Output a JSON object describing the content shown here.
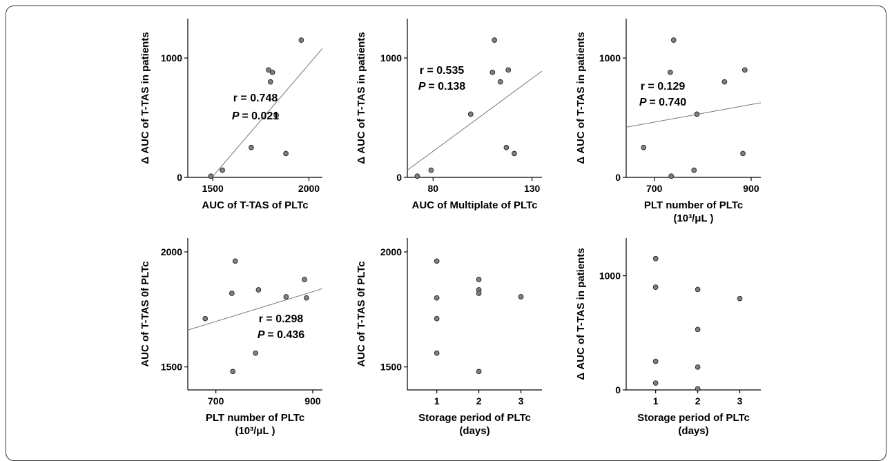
{
  "chart_data": [
    {
      "type": "scatter",
      "xlabel": [
        "AUC of T-TAS of PLTc"
      ],
      "ylabel": "Δ AUC of T-TAS in patients",
      "xlim": [
        1370,
        2070
      ],
      "ylim": [
        0,
        1330
      ],
      "xticks": [
        1500,
        2000
      ],
      "yticks": [
        0,
        1000
      ],
      "points": [
        [
          1490,
          10
        ],
        [
          1550,
          60
        ],
        [
          1700,
          250
        ],
        [
          1790,
          900
        ],
        [
          1800,
          800
        ],
        [
          1810,
          880
        ],
        [
          1830,
          520
        ],
        [
          1880,
          200
        ],
        [
          1960,
          1150
        ]
      ],
      "trendline": [
        [
          1480,
          -30
        ],
        [
          2070,
          1080
        ]
      ],
      "stats": {
        "r": "r = 0.748",
        "p": "= 0.021"
      }
    },
    {
      "type": "scatter",
      "xlabel": [
        "AUC of Multiplate of PLTc"
      ],
      "ylabel": "Δ AUC of T-TAS in patients",
      "xlim": [
        67,
        135
      ],
      "ylim": [
        0,
        1330
      ],
      "xticks": [
        80,
        130
      ],
      "yticks": [
        0,
        1000
      ],
      "points": [
        [
          72,
          10
        ],
        [
          79,
          60
        ],
        [
          99,
          530
        ],
        [
          110,
          880
        ],
        [
          111,
          1150
        ],
        [
          114,
          800
        ],
        [
          117,
          250
        ],
        [
          118,
          900
        ],
        [
          121,
          200
        ]
      ],
      "trendline": [
        [
          67,
          60
        ],
        [
          135,
          890
        ]
      ],
      "stats": {
        "r": "r = 0.535",
        "p": "= 0.138"
      }
    },
    {
      "type": "scatter",
      "xlabel": [
        "PLT number of PLTc",
        "(10³/μL )"
      ],
      "ylabel": "Δ AUC of T-TAS in patients",
      "xlim": [
        642,
        920
      ],
      "ylim": [
        0,
        1330
      ],
      "xticks": [
        700,
        900
      ],
      "yticks": [
        0,
        1000
      ],
      "points": [
        [
          678,
          250
        ],
        [
          733,
          880
        ],
        [
          735,
          10
        ],
        [
          740,
          1150
        ],
        [
          782,
          60
        ],
        [
          788,
          530
        ],
        [
          845,
          800
        ],
        [
          883,
          200
        ],
        [
          887,
          900
        ]
      ],
      "trendline": [
        [
          642,
          420
        ],
        [
          920,
          625
        ]
      ],
      "stats": {
        "r": "r = 0.129",
        "p": "= 0.740"
      }
    },
    {
      "type": "scatter",
      "xlabel": [
        "PLT number of PLTc",
        "(10³/μL )"
      ],
      "ylabel": "AUC of T-TAS 0f PLTc",
      "xlim": [
        642,
        920
      ],
      "ylim": [
        1400,
        2060
      ],
      "xticks": [
        700,
        900
      ],
      "yticks": [
        1500,
        2000
      ],
      "points": [
        [
          678,
          1710
        ],
        [
          733,
          1820
        ],
        [
          735,
          1480
        ],
        [
          740,
          1960
        ],
        [
          782,
          1560
        ],
        [
          788,
          1835
        ],
        [
          845,
          1805
        ],
        [
          883,
          1880
        ],
        [
          887,
          1800
        ]
      ],
      "trendline": [
        [
          642,
          1660
        ],
        [
          920,
          1840
        ]
      ],
      "stats": {
        "r": "r = 0.298",
        "p": "= 0.436"
      }
    },
    {
      "type": "scatter",
      "xlabel": [
        "Storage period of PLTc",
        "(days)"
      ],
      "ylabel": "AUC of T-TAS 0f PLTc",
      "xlim": [
        0.3,
        3.5
      ],
      "ylim": [
        1400,
        2060
      ],
      "xticks": [
        1,
        2,
        3
      ],
      "yticks": [
        1500,
        2000
      ],
      "points": [
        [
          1,
          1960
        ],
        [
          1,
          1800
        ],
        [
          1,
          1710
        ],
        [
          1,
          1560
        ],
        [
          2,
          1880
        ],
        [
          2,
          1835
        ],
        [
          2,
          1820
        ],
        [
          2,
          1480
        ],
        [
          3,
          1805
        ]
      ],
      "trendline": null,
      "stats": null
    },
    {
      "type": "scatter",
      "xlabel": [
        "Storage period of PLTc",
        "(days)"
      ],
      "ylabel": "Δ AUC of T-TAS in patients",
      "xlim": [
        0.3,
        3.5
      ],
      "ylim": [
        0,
        1330
      ],
      "xticks": [
        1,
        2,
        3
      ],
      "yticks": [
        0,
        1000
      ],
      "points": [
        [
          1,
          1150
        ],
        [
          1,
          900
        ],
        [
          1,
          250
        ],
        [
          1,
          60
        ],
        [
          2,
          880
        ],
        [
          2,
          530
        ],
        [
          2,
          200
        ],
        [
          2,
          10
        ],
        [
          3,
          800
        ]
      ],
      "trendline": null,
      "stats": null
    }
  ]
}
